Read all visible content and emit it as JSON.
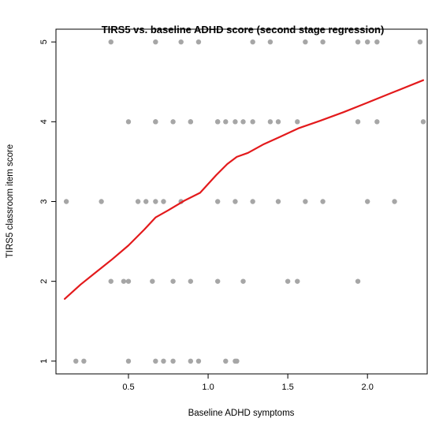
{
  "chart_data": {
    "type": "scatter",
    "title": "TIRS5 vs. baseline ADHD score (second stage regression)",
    "xlabel": "Baseline ADHD symptoms",
    "ylabel": "TIRS5 classroom item score",
    "xlim": [
      0.045,
      2.375
    ],
    "ylim": [
      0.84,
      5.16
    ],
    "xticks": [
      {
        "value": 0.5,
        "label": "0.5"
      },
      {
        "value": 1.0,
        "label": "1.0"
      },
      {
        "value": 1.5,
        "label": "1.5"
      },
      {
        "value": 2.0,
        "label": "2.0"
      }
    ],
    "yticks": [
      {
        "value": 1,
        "label": "1"
      },
      {
        "value": 2,
        "label": "2"
      },
      {
        "value": 3,
        "label": "3"
      },
      {
        "value": 4,
        "label": "4"
      },
      {
        "value": 5,
        "label": "5"
      }
    ],
    "grid": false,
    "legend": "none",
    "points_color": "#a6a6a6",
    "points": [
      {
        "x": 0.39,
        "y": 5
      },
      {
        "x": 0.67,
        "y": 5
      },
      {
        "x": 0.83,
        "y": 5
      },
      {
        "x": 0.94,
        "y": 5
      },
      {
        "x": 1.28,
        "y": 5
      },
      {
        "x": 1.39,
        "y": 5
      },
      {
        "x": 1.61,
        "y": 5
      },
      {
        "x": 1.72,
        "y": 5
      },
      {
        "x": 1.94,
        "y": 5
      },
      {
        "x": 2.0,
        "y": 5
      },
      {
        "x": 2.06,
        "y": 5
      },
      {
        "x": 2.33,
        "y": 5
      },
      {
        "x": 0.5,
        "y": 4
      },
      {
        "x": 0.67,
        "y": 4
      },
      {
        "x": 0.67,
        "y": 4
      },
      {
        "x": 0.78,
        "y": 4
      },
      {
        "x": 0.89,
        "y": 4
      },
      {
        "x": 0.89,
        "y": 4
      },
      {
        "x": 1.06,
        "y": 4
      },
      {
        "x": 1.06,
        "y": 4
      },
      {
        "x": 1.11,
        "y": 4
      },
      {
        "x": 1.17,
        "y": 4
      },
      {
        "x": 1.22,
        "y": 4
      },
      {
        "x": 1.28,
        "y": 4
      },
      {
        "x": 1.39,
        "y": 4
      },
      {
        "x": 1.44,
        "y": 4
      },
      {
        "x": 1.56,
        "y": 4
      },
      {
        "x": 1.94,
        "y": 4
      },
      {
        "x": 2.06,
        "y": 4
      },
      {
        "x": 2.35,
        "y": 4
      },
      {
        "x": 0.11,
        "y": 3
      },
      {
        "x": 0.33,
        "y": 3
      },
      {
        "x": 0.56,
        "y": 3
      },
      {
        "x": 0.61,
        "y": 3
      },
      {
        "x": 0.67,
        "y": 3
      },
      {
        "x": 0.72,
        "y": 3
      },
      {
        "x": 0.83,
        "y": 3
      },
      {
        "x": 1.06,
        "y": 3
      },
      {
        "x": 1.17,
        "y": 3
      },
      {
        "x": 1.28,
        "y": 3
      },
      {
        "x": 1.44,
        "y": 3
      },
      {
        "x": 1.61,
        "y": 3
      },
      {
        "x": 1.72,
        "y": 3
      },
      {
        "x": 2.0,
        "y": 3
      },
      {
        "x": 2.17,
        "y": 3
      },
      {
        "x": 0.39,
        "y": 2
      },
      {
        "x": 0.47,
        "y": 2
      },
      {
        "x": 0.5,
        "y": 2
      },
      {
        "x": 0.65,
        "y": 2
      },
      {
        "x": 0.78,
        "y": 2
      },
      {
        "x": 0.89,
        "y": 2
      },
      {
        "x": 1.06,
        "y": 2
      },
      {
        "x": 1.22,
        "y": 2
      },
      {
        "x": 1.5,
        "y": 2
      },
      {
        "x": 1.56,
        "y": 2
      },
      {
        "x": 1.94,
        "y": 2
      },
      {
        "x": 0.17,
        "y": 1
      },
      {
        "x": 0.22,
        "y": 1
      },
      {
        "x": 0.5,
        "y": 1
      },
      {
        "x": 0.67,
        "y": 1
      },
      {
        "x": 0.72,
        "y": 1
      },
      {
        "x": 0.78,
        "y": 1
      },
      {
        "x": 0.89,
        "y": 1
      },
      {
        "x": 0.94,
        "y": 1
      },
      {
        "x": 1.11,
        "y": 1
      },
      {
        "x": 1.17,
        "y": 1
      },
      {
        "x": 1.18,
        "y": 1
      }
    ],
    "series": [
      {
        "type": "line",
        "color": "#e31a1c",
        "x": [
          0.1,
          0.2,
          0.3,
          0.4,
          0.5,
          0.6,
          0.67,
          0.75,
          0.85,
          0.95,
          1.05,
          1.12,
          1.18,
          1.25,
          1.35,
          1.45,
          1.57,
          1.7,
          1.85,
          2.0,
          2.15,
          2.35
        ],
        "y": [
          1.78,
          1.96,
          2.12,
          2.28,
          2.45,
          2.65,
          2.8,
          2.89,
          3.01,
          3.11,
          3.33,
          3.47,
          3.56,
          3.61,
          3.72,
          3.81,
          3.92,
          4.01,
          4.12,
          4.24,
          4.36,
          4.52
        ]
      }
    ]
  }
}
